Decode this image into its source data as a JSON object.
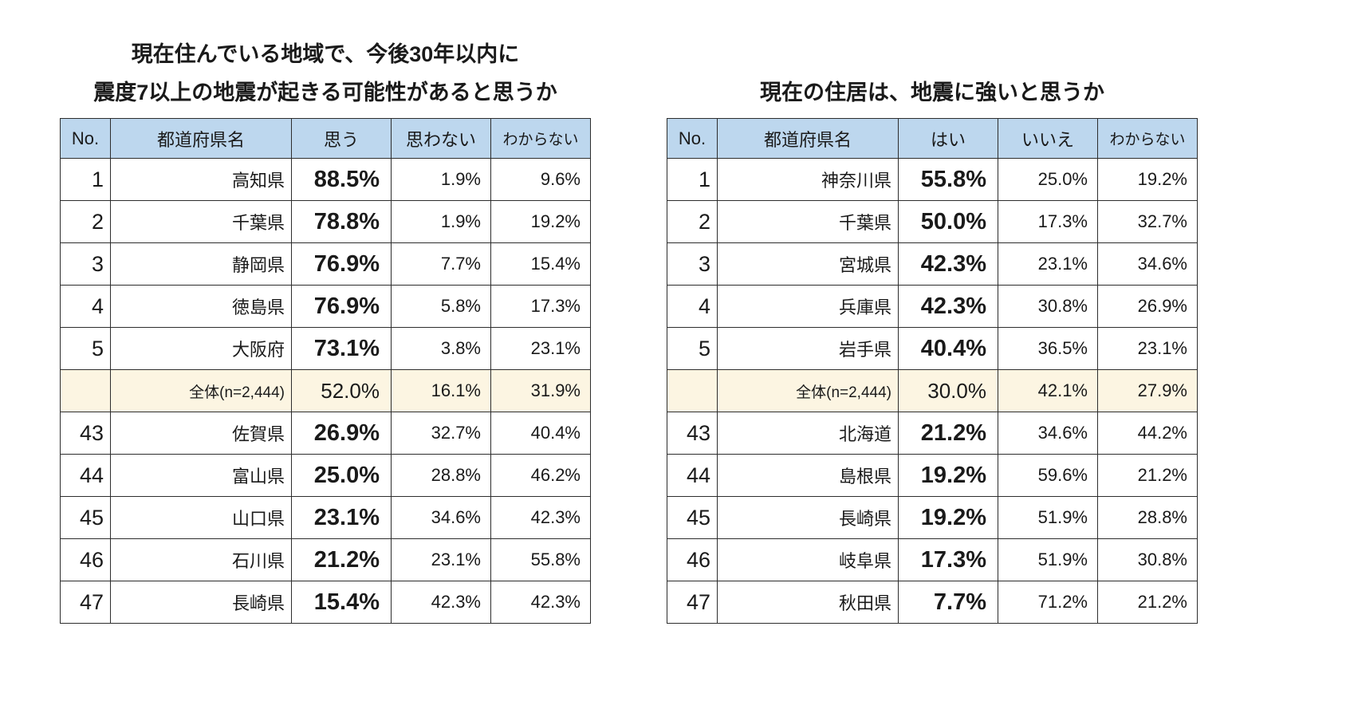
{
  "colors": {
    "header_bg": "#BDD7EE",
    "overall_row_bg": "#FCF5E2",
    "border": "#2D2D2D",
    "page_bg": "#FFFFFF",
    "text": "#1A1A1A"
  },
  "chart_data": [
    {
      "type": "table",
      "title": "現在住んでいる地域で、今後30年以内に震度7以上の地震が起きる可能性があると思うか",
      "title_lines": [
        "現在住んでいる地域で、今後30年以内に",
        "震度7以上の地震が起きる可能性があると思うか"
      ],
      "columns": [
        "No.",
        "都道府県名",
        "思う",
        "思わない",
        "わからない"
      ],
      "rows": [
        {
          "no": "1",
          "name": "高知県",
          "values": [
            "88.5%",
            "1.9%",
            "9.6%"
          ],
          "overall": false
        },
        {
          "no": "2",
          "name": "千葉県",
          "values": [
            "78.8%",
            "1.9%",
            "19.2%"
          ],
          "overall": false
        },
        {
          "no": "3",
          "name": "静岡県",
          "values": [
            "76.9%",
            "7.7%",
            "15.4%"
          ],
          "overall": false
        },
        {
          "no": "4",
          "name": "徳島県",
          "values": [
            "76.9%",
            "5.8%",
            "17.3%"
          ],
          "overall": false
        },
        {
          "no": "5",
          "name": "大阪府",
          "values": [
            "73.1%",
            "3.8%",
            "23.1%"
          ],
          "overall": false
        },
        {
          "no": "",
          "name": "全体(n=2,444)",
          "values": [
            "52.0%",
            "16.1%",
            "31.9%"
          ],
          "overall": true
        },
        {
          "no": "43",
          "name": "佐賀県",
          "values": [
            "26.9%",
            "32.7%",
            "40.4%"
          ],
          "overall": false
        },
        {
          "no": "44",
          "name": "富山県",
          "values": [
            "25.0%",
            "28.8%",
            "46.2%"
          ],
          "overall": false
        },
        {
          "no": "45",
          "name": "山口県",
          "values": [
            "23.1%",
            "34.6%",
            "42.3%"
          ],
          "overall": false
        },
        {
          "no": "46",
          "name": "石川県",
          "values": [
            "21.2%",
            "23.1%",
            "55.8%"
          ],
          "overall": false
        },
        {
          "no": "47",
          "name": "長崎県",
          "values": [
            "15.4%",
            "42.3%",
            "42.3%"
          ],
          "overall": false
        }
      ]
    },
    {
      "type": "table",
      "title": "現在の住居は、地震に強いと思うか",
      "title_lines": [
        "現在の住居は、地震に強いと思うか"
      ],
      "columns": [
        "No.",
        "都道府県名",
        "はい",
        "いいえ",
        "わからない"
      ],
      "rows": [
        {
          "no": "1",
          "name": "神奈川県",
          "values": [
            "55.8%",
            "25.0%",
            "19.2%"
          ],
          "overall": false
        },
        {
          "no": "2",
          "name": "千葉県",
          "values": [
            "50.0%",
            "17.3%",
            "32.7%"
          ],
          "overall": false
        },
        {
          "no": "3",
          "name": "宮城県",
          "values": [
            "42.3%",
            "23.1%",
            "34.6%"
          ],
          "overall": false
        },
        {
          "no": "4",
          "name": "兵庫県",
          "values": [
            "42.3%",
            "30.8%",
            "26.9%"
          ],
          "overall": false
        },
        {
          "no": "5",
          "name": "岩手県",
          "values": [
            "40.4%",
            "36.5%",
            "23.1%"
          ],
          "overall": false
        },
        {
          "no": "",
          "name": "全体(n=2,444)",
          "values": [
            "30.0%",
            "42.1%",
            "27.9%"
          ],
          "overall": true
        },
        {
          "no": "43",
          "name": "北海道",
          "values": [
            "21.2%",
            "34.6%",
            "44.2%"
          ],
          "overall": false
        },
        {
          "no": "44",
          "name": "島根県",
          "values": [
            "19.2%",
            "59.6%",
            "21.2%"
          ],
          "overall": false
        },
        {
          "no": "45",
          "name": "長崎県",
          "values": [
            "19.2%",
            "51.9%",
            "28.8%"
          ],
          "overall": false
        },
        {
          "no": "46",
          "name": "岐阜県",
          "values": [
            "17.3%",
            "51.9%",
            "30.8%"
          ],
          "overall": false
        },
        {
          "no": "47",
          "name": "秋田県",
          "values": [
            "7.7%",
            "71.2%",
            "21.2%"
          ],
          "overall": false
        }
      ]
    }
  ]
}
